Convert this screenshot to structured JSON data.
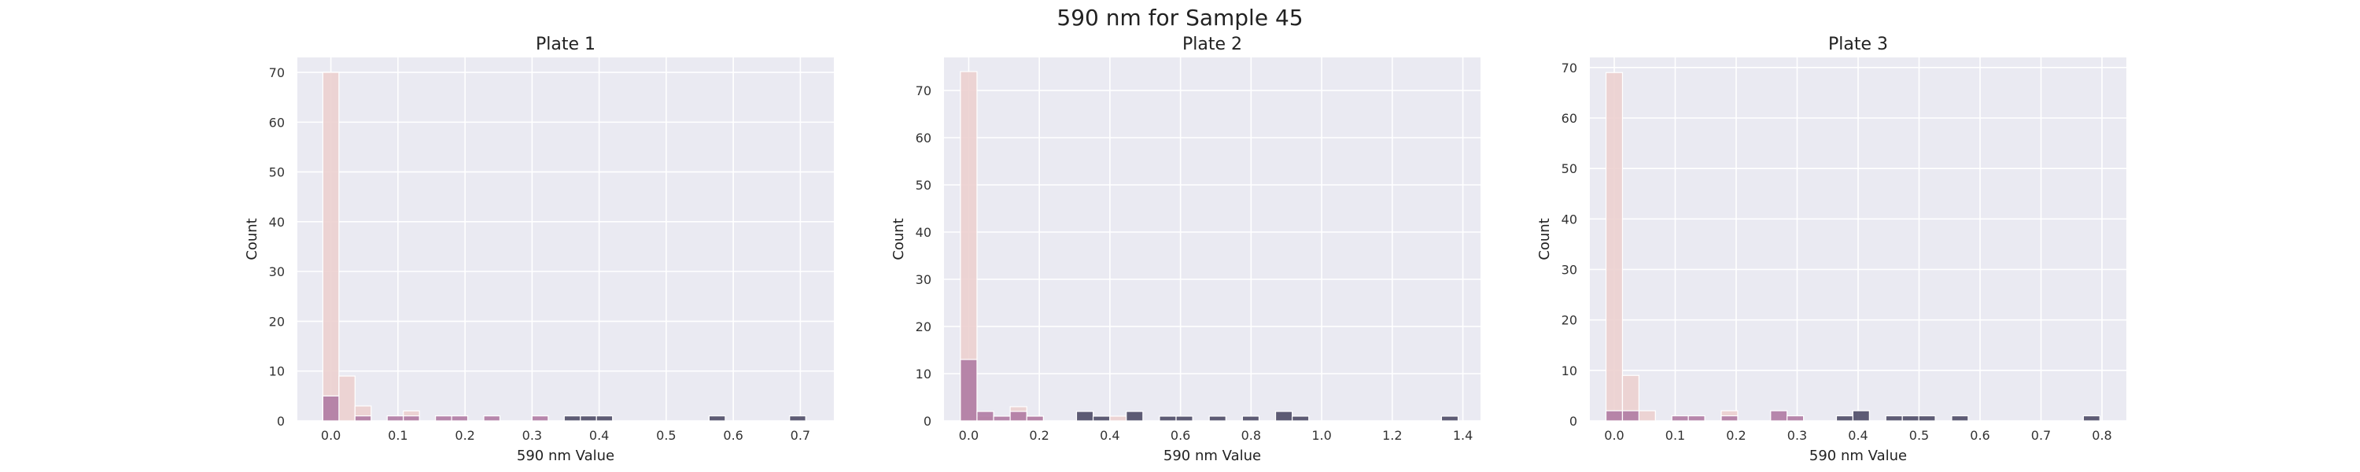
{
  "figure_title": "590 nm for Sample 45",
  "colors": {
    "background": "#eaeaf2",
    "grid": "#ffffff",
    "light": "#ecd0cf",
    "mid": "#b07ba3",
    "dark": "#4e4b66"
  },
  "chart_data": [
    {
      "type": "bar",
      "title": "Plate 1",
      "xlabel": "590 nm Value",
      "ylabel": "Count",
      "xlim": [
        -0.05,
        0.75
      ],
      "ylim": [
        0,
        73
      ],
      "xticks": [
        "0.0",
        "0.1",
        "0.2",
        "0.3",
        "0.4",
        "0.5",
        "0.6",
        "0.7"
      ],
      "yticks": [
        "0",
        "10",
        "20",
        "30",
        "40",
        "50",
        "60",
        "70"
      ],
      "bin_width": 0.024,
      "grid": true,
      "series": [
        {
          "color": "light",
          "bins": [
            [
              0.0,
              70
            ],
            [
              0.024,
              9
            ],
            [
              0.048,
              3
            ],
            [
              0.12,
              2
            ]
          ]
        },
        {
          "color": "mid",
          "bins": [
            [
              0.0,
              5
            ],
            [
              0.048,
              1
            ],
            [
              0.096,
              1
            ],
            [
              0.12,
              1
            ],
            [
              0.168,
              1
            ],
            [
              0.192,
              1
            ],
            [
              0.24,
              1
            ],
            [
              0.312,
              1
            ]
          ]
        },
        {
          "color": "dark",
          "bins": [
            [
              0.36,
              1
            ],
            [
              0.384,
              1
            ],
            [
              0.408,
              1
            ],
            [
              0.576,
              1
            ],
            [
              0.696,
              1
            ]
          ]
        }
      ]
    },
    {
      "type": "bar",
      "title": "Plate 2",
      "xlabel": "590 nm Value",
      "ylabel": "Count",
      "xlim": [
        -0.07,
        1.45
      ],
      "ylim": [
        0,
        77
      ],
      "xticks": [
        "0.0",
        "0.2",
        "0.4",
        "0.6",
        "0.8",
        "1.0",
        "1.2",
        "1.4"
      ],
      "yticks": [
        "0",
        "10",
        "20",
        "30",
        "40",
        "50",
        "60",
        "70"
      ],
      "bin_width": 0.047,
      "grid": true,
      "series": [
        {
          "color": "light",
          "bins": [
            [
              0.0,
              74
            ],
            [
              0.047,
              1
            ],
            [
              0.141,
              3
            ],
            [
              0.188,
              1
            ],
            [
              0.423,
              1
            ]
          ]
        },
        {
          "color": "mid",
          "bins": [
            [
              0.0,
              13
            ],
            [
              0.047,
              2
            ],
            [
              0.094,
              1
            ],
            [
              0.141,
              2
            ],
            [
              0.188,
              1
            ]
          ]
        },
        {
          "color": "dark",
          "bins": [
            [
              0.329,
              2
            ],
            [
              0.376,
              1
            ],
            [
              0.47,
              2
            ],
            [
              0.564,
              1
            ],
            [
              0.611,
              1
            ],
            [
              0.705,
              1
            ],
            [
              0.799,
              1
            ],
            [
              0.893,
              2
            ],
            [
              0.94,
              1
            ],
            [
              1.363,
              1
            ]
          ]
        }
      ]
    },
    {
      "type": "bar",
      "title": "Plate 3",
      "xlabel": "590 nm Value",
      "ylabel": "Count",
      "xlim": [
        -0.04,
        0.84
      ],
      "ylim": [
        0,
        72
      ],
      "xticks": [
        "0.0",
        "0.1",
        "0.2",
        "0.3",
        "0.4",
        "0.5",
        "0.6",
        "0.7",
        "0.8"
      ],
      "yticks": [
        "0",
        "10",
        "20",
        "30",
        "40",
        "50",
        "60",
        "70"
      ],
      "bin_width": 0.027,
      "grid": true,
      "series": [
        {
          "color": "light",
          "bins": [
            [
              0.0,
              69
            ],
            [
              0.027,
              9
            ],
            [
              0.054,
              2
            ],
            [
              0.189,
              2
            ]
          ]
        },
        {
          "color": "mid",
          "bins": [
            [
              0.0,
              2
            ],
            [
              0.027,
              2
            ],
            [
              0.108,
              1
            ],
            [
              0.135,
              1
            ],
            [
              0.189,
              1
            ],
            [
              0.27,
              2
            ],
            [
              0.297,
              1
            ]
          ]
        },
        {
          "color": "dark",
          "bins": [
            [
              0.378,
              1
            ],
            [
              0.405,
              2
            ],
            [
              0.459,
              1
            ],
            [
              0.486,
              1
            ],
            [
              0.513,
              1
            ],
            [
              0.567,
              1
            ],
            [
              0.783,
              1
            ]
          ]
        }
      ]
    }
  ]
}
